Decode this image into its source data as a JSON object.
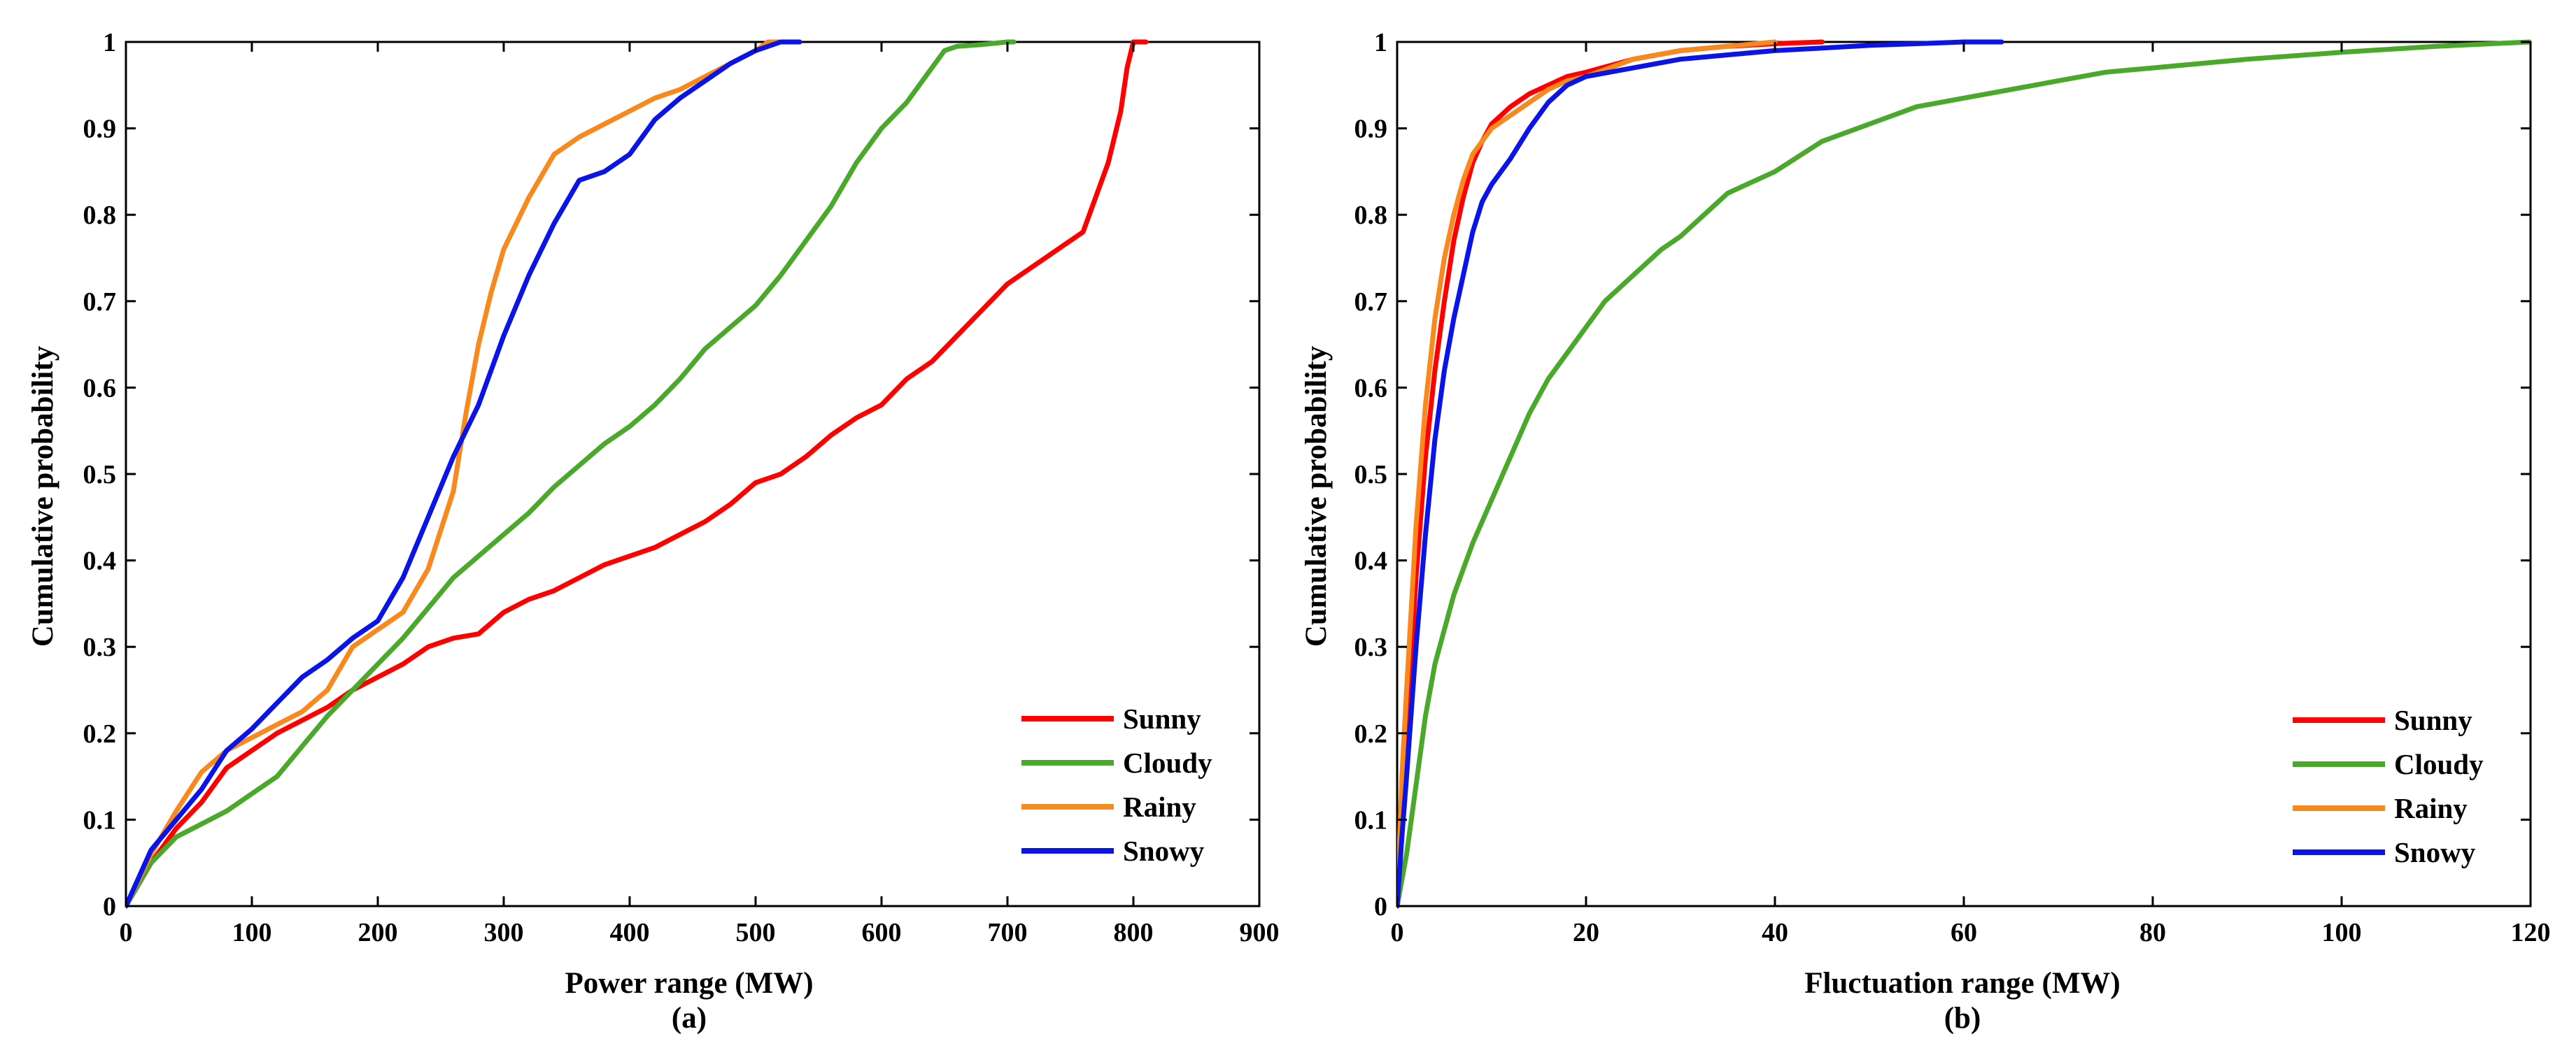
{
  "chart_data": [
    {
      "type": "line",
      "panel": "(a)",
      "xlabel": "Power range (MW)",
      "ylabel": "Cumulative probability",
      "xlim": [
        0,
        900
      ],
      "ylim": [
        0,
        1
      ],
      "xticks": [
        0,
        100,
        200,
        300,
        400,
        500,
        600,
        700,
        800,
        900
      ],
      "xtick_labels": [
        "0",
        "100",
        "200",
        "300",
        "400",
        "500",
        "600",
        "700",
        "800",
        "900"
      ],
      "yticks": [
        0,
        0.1,
        0.2,
        0.3,
        0.4,
        0.5,
        0.6,
        0.7,
        0.8,
        0.9,
        1
      ],
      "ytick_labels": [
        "0",
        "0.1",
        "0.2",
        "0.3",
        "0.4",
        "0.5",
        "0.6",
        "0.7",
        "0.8",
        "0.9",
        "1"
      ],
      "legend_position": "bottom-right",
      "series": [
        {
          "name": "Sunny",
          "color": "#ff0000",
          "x": [
            0,
            20,
            40,
            60,
            80,
            100,
            120,
            140,
            160,
            180,
            200,
            220,
            240,
            260,
            280,
            300,
            320,
            340,
            360,
            380,
            400,
            420,
            440,
            460,
            480,
            500,
            520,
            540,
            560,
            580,
            600,
            620,
            640,
            660,
            680,
            700,
            720,
            740,
            760,
            770,
            780,
            790,
            795,
            800,
            810
          ],
          "y": [
            0,
            0.05,
            0.09,
            0.12,
            0.16,
            0.18,
            0.2,
            0.215,
            0.23,
            0.25,
            0.265,
            0.28,
            0.3,
            0.31,
            0.315,
            0.34,
            0.355,
            0.365,
            0.38,
            0.395,
            0.405,
            0.415,
            0.43,
            0.445,
            0.465,
            0.49,
            0.5,
            0.52,
            0.545,
            0.565,
            0.58,
            0.61,
            0.63,
            0.66,
            0.69,
            0.72,
            0.74,
            0.76,
            0.78,
            0.82,
            0.86,
            0.92,
            0.97,
            1.0,
            1.0
          ]
        },
        {
          "name": "Cloudy",
          "color": "#4aa82a",
          "x": [
            0,
            20,
            40,
            60,
            80,
            100,
            120,
            140,
            160,
            180,
            200,
            220,
            240,
            260,
            280,
            300,
            320,
            340,
            360,
            380,
            400,
            420,
            440,
            460,
            480,
            500,
            520,
            540,
            560,
            580,
            600,
            620,
            640,
            650,
            660,
            680,
            700,
            705
          ],
          "y": [
            0,
            0.05,
            0.08,
            0.095,
            0.11,
            0.13,
            0.15,
            0.185,
            0.22,
            0.25,
            0.28,
            0.31,
            0.345,
            0.38,
            0.405,
            0.43,
            0.455,
            0.485,
            0.51,
            0.535,
            0.555,
            0.58,
            0.61,
            0.645,
            0.67,
            0.695,
            0.73,
            0.77,
            0.81,
            0.86,
            0.9,
            0.93,
            0.97,
            0.99,
            0.995,
            0.997,
            1.0,
            1.0
          ]
        },
        {
          "name": "Rainy",
          "color": "#f7891e",
          "x": [
            0,
            20,
            40,
            60,
            80,
            100,
            120,
            140,
            160,
            180,
            200,
            220,
            240,
            260,
            270,
            280,
            290,
            300,
            320,
            340,
            360,
            380,
            400,
            420,
            440,
            460,
            480,
            500,
            510,
            520
          ],
          "y": [
            0,
            0.06,
            0.11,
            0.155,
            0.18,
            0.195,
            0.21,
            0.225,
            0.25,
            0.3,
            0.32,
            0.34,
            0.39,
            0.48,
            0.57,
            0.65,
            0.71,
            0.76,
            0.82,
            0.87,
            0.89,
            0.905,
            0.92,
            0.935,
            0.945,
            0.96,
            0.975,
            0.99,
            1.0,
            1.0
          ]
        },
        {
          "name": "Snowy",
          "color": "#0a14e6",
          "x": [
            0,
            20,
            40,
            60,
            80,
            100,
            120,
            140,
            160,
            180,
            200,
            220,
            240,
            260,
            280,
            300,
            320,
            340,
            360,
            380,
            400,
            420,
            440,
            460,
            480,
            500,
            520,
            535
          ],
          "y": [
            0,
            0.065,
            0.1,
            0.135,
            0.18,
            0.205,
            0.235,
            0.265,
            0.285,
            0.31,
            0.33,
            0.38,
            0.45,
            0.52,
            0.58,
            0.66,
            0.73,
            0.79,
            0.84,
            0.85,
            0.87,
            0.91,
            0.935,
            0.955,
            0.975,
            0.99,
            1.0,
            1.0
          ]
        }
      ]
    },
    {
      "type": "line",
      "panel": "(b)",
      "xlabel": "Fluctuation range (MW)",
      "ylabel": "Cumulative probability",
      "xlim": [
        0,
        120
      ],
      "ylim": [
        0,
        1
      ],
      "xticks": [
        0,
        20,
        40,
        60,
        80,
        100,
        120
      ],
      "xtick_labels": [
        "0",
        "20",
        "40",
        "60",
        "80",
        "100",
        "120"
      ],
      "yticks": [
        0,
        0.1,
        0.2,
        0.3,
        0.4,
        0.5,
        0.6,
        0.7,
        0.8,
        0.9,
        1
      ],
      "ytick_labels": [
        "0",
        "0.1",
        "0.2",
        "0.3",
        "0.4",
        "0.5",
        "0.6",
        "0.7",
        "0.8",
        "0.9",
        "1"
      ],
      "legend_position": "bottom-right",
      "series": [
        {
          "name": "Sunny",
          "color": "#ff0000",
          "x": [
            0,
            0.5,
            1,
            2,
            3,
            4,
            5,
            6,
            7,
            8,
            9,
            10,
            12,
            14,
            16,
            18,
            20,
            25,
            30,
            35,
            40,
            45
          ],
          "y": [
            0,
            0.12,
            0.2,
            0.38,
            0.52,
            0.62,
            0.7,
            0.77,
            0.82,
            0.86,
            0.885,
            0.905,
            0.925,
            0.94,
            0.95,
            0.96,
            0.965,
            0.98,
            0.99,
            0.995,
            0.998,
            1.0
          ]
        },
        {
          "name": "Cloudy",
          "color": "#4aa82a",
          "x": [
            0,
            1,
            2,
            3,
            4,
            5,
            6,
            8,
            10,
            12,
            14,
            16,
            18,
            20,
            22,
            25,
            28,
            30,
            35,
            40,
            45,
            50,
            55,
            60,
            65,
            70,
            75,
            80,
            90,
            100,
            110,
            120
          ],
          "y": [
            0,
            0.06,
            0.14,
            0.22,
            0.28,
            0.32,
            0.36,
            0.42,
            0.47,
            0.52,
            0.57,
            0.61,
            0.64,
            0.67,
            0.7,
            0.73,
            0.76,
            0.775,
            0.825,
            0.85,
            0.885,
            0.905,
            0.925,
            0.935,
            0.945,
            0.955,
            0.965,
            0.97,
            0.98,
            0.988,
            0.995,
            1.0
          ]
        },
        {
          "name": "Rainy",
          "color": "#f7891e",
          "x": [
            0,
            0.5,
            1,
            2,
            3,
            4,
            5,
            6,
            7,
            8,
            9,
            10,
            12,
            14,
            16,
            18,
            20,
            25,
            30,
            35,
            40
          ],
          "y": [
            0,
            0.15,
            0.25,
            0.44,
            0.58,
            0.68,
            0.75,
            0.8,
            0.84,
            0.87,
            0.885,
            0.9,
            0.915,
            0.93,
            0.945,
            0.955,
            0.96,
            0.98,
            0.99,
            0.995,
            1.0
          ]
        },
        {
          "name": "Snowy",
          "color": "#0a14e6",
          "x": [
            0,
            0.5,
            1,
            2,
            3,
            4,
            5,
            6,
            7,
            8,
            9,
            10,
            12,
            14,
            16,
            18,
            20,
            25,
            30,
            35,
            40,
            45,
            50,
            55,
            60,
            64
          ],
          "y": [
            0,
            0.08,
            0.15,
            0.3,
            0.43,
            0.54,
            0.62,
            0.68,
            0.73,
            0.78,
            0.815,
            0.835,
            0.865,
            0.9,
            0.93,
            0.95,
            0.96,
            0.97,
            0.98,
            0.985,
            0.99,
            0.993,
            0.996,
            0.998,
            1.0,
            1.0
          ]
        }
      ]
    }
  ]
}
